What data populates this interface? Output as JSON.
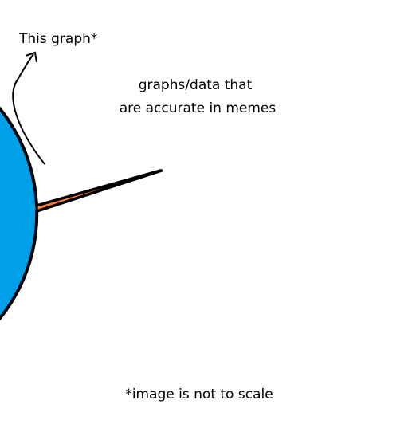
{
  "chart_data": {
    "type": "pie",
    "title": "",
    "slices": [
      {
        "label": "graphs/data that are accurate in memes",
        "label_lines": [
          "graphs/data that",
          "are accurate in memes"
        ],
        "value": 99.5,
        "color": "#00a0e8"
      },
      {
        "label": "This graph*",
        "value": 0.5,
        "color": "#ff8040"
      }
    ],
    "annotations": {
      "callout": "This graph*",
      "footnote": "*image is not to scale"
    },
    "outline_color": "#000000",
    "legend": "none"
  }
}
